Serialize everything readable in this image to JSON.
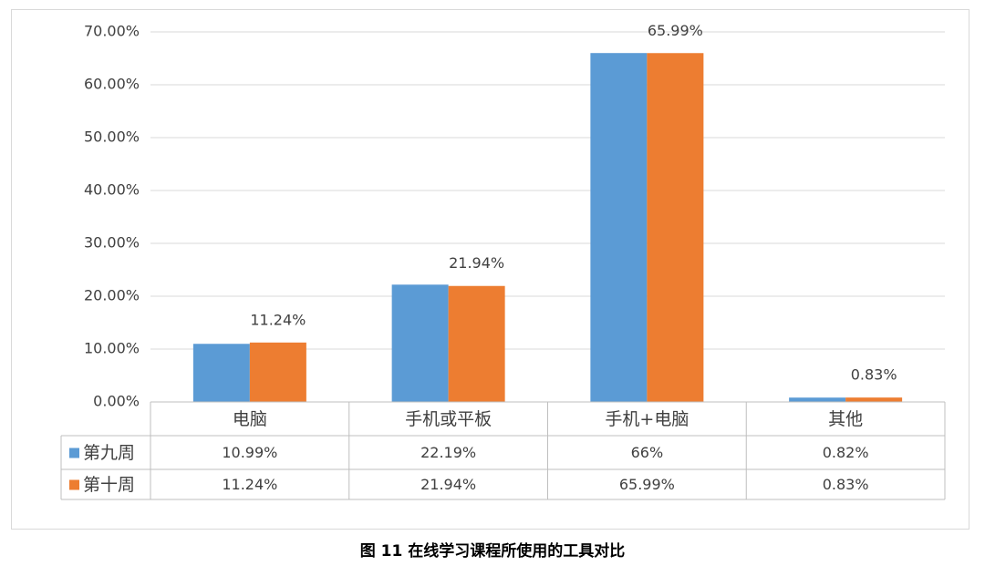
{
  "chart_data": {
    "type": "bar",
    "title": "图 11 在线学习课程所使用的工具对比",
    "categories": [
      "电脑",
      "手机或平板",
      "手机+电脑",
      "其他"
    ],
    "series": [
      {
        "name": "第九周",
        "color": "#5b9bd5",
        "values": [
          10.99,
          22.19,
          66,
          0.82
        ],
        "value_labels": [
          "10.99%",
          "22.19%",
          "66%",
          "0.82%"
        ],
        "show_labels": false
      },
      {
        "name": "第十周",
        "color": "#ed7d31",
        "values": [
          11.24,
          21.94,
          65.99,
          0.83
        ],
        "value_labels": [
          "11.24%",
          "21.94%",
          "65.99%",
          "0.83%"
        ],
        "show_labels": true
      }
    ],
    "ylim": [
      0,
      70
    ],
    "yticks": [
      {
        "value": 0,
        "label": "0.00%"
      },
      {
        "value": 10,
        "label": "10.00%"
      },
      {
        "value": 20,
        "label": "20.00%"
      },
      {
        "value": 30,
        "label": "30.00%"
      },
      {
        "value": 40,
        "label": "40.00%"
      },
      {
        "value": 50,
        "label": "50.00%"
      },
      {
        "value": 60,
        "label": "60.00%"
      },
      {
        "value": 70,
        "label": "70.00%"
      }
    ],
    "grid": true,
    "data_table": true
  }
}
